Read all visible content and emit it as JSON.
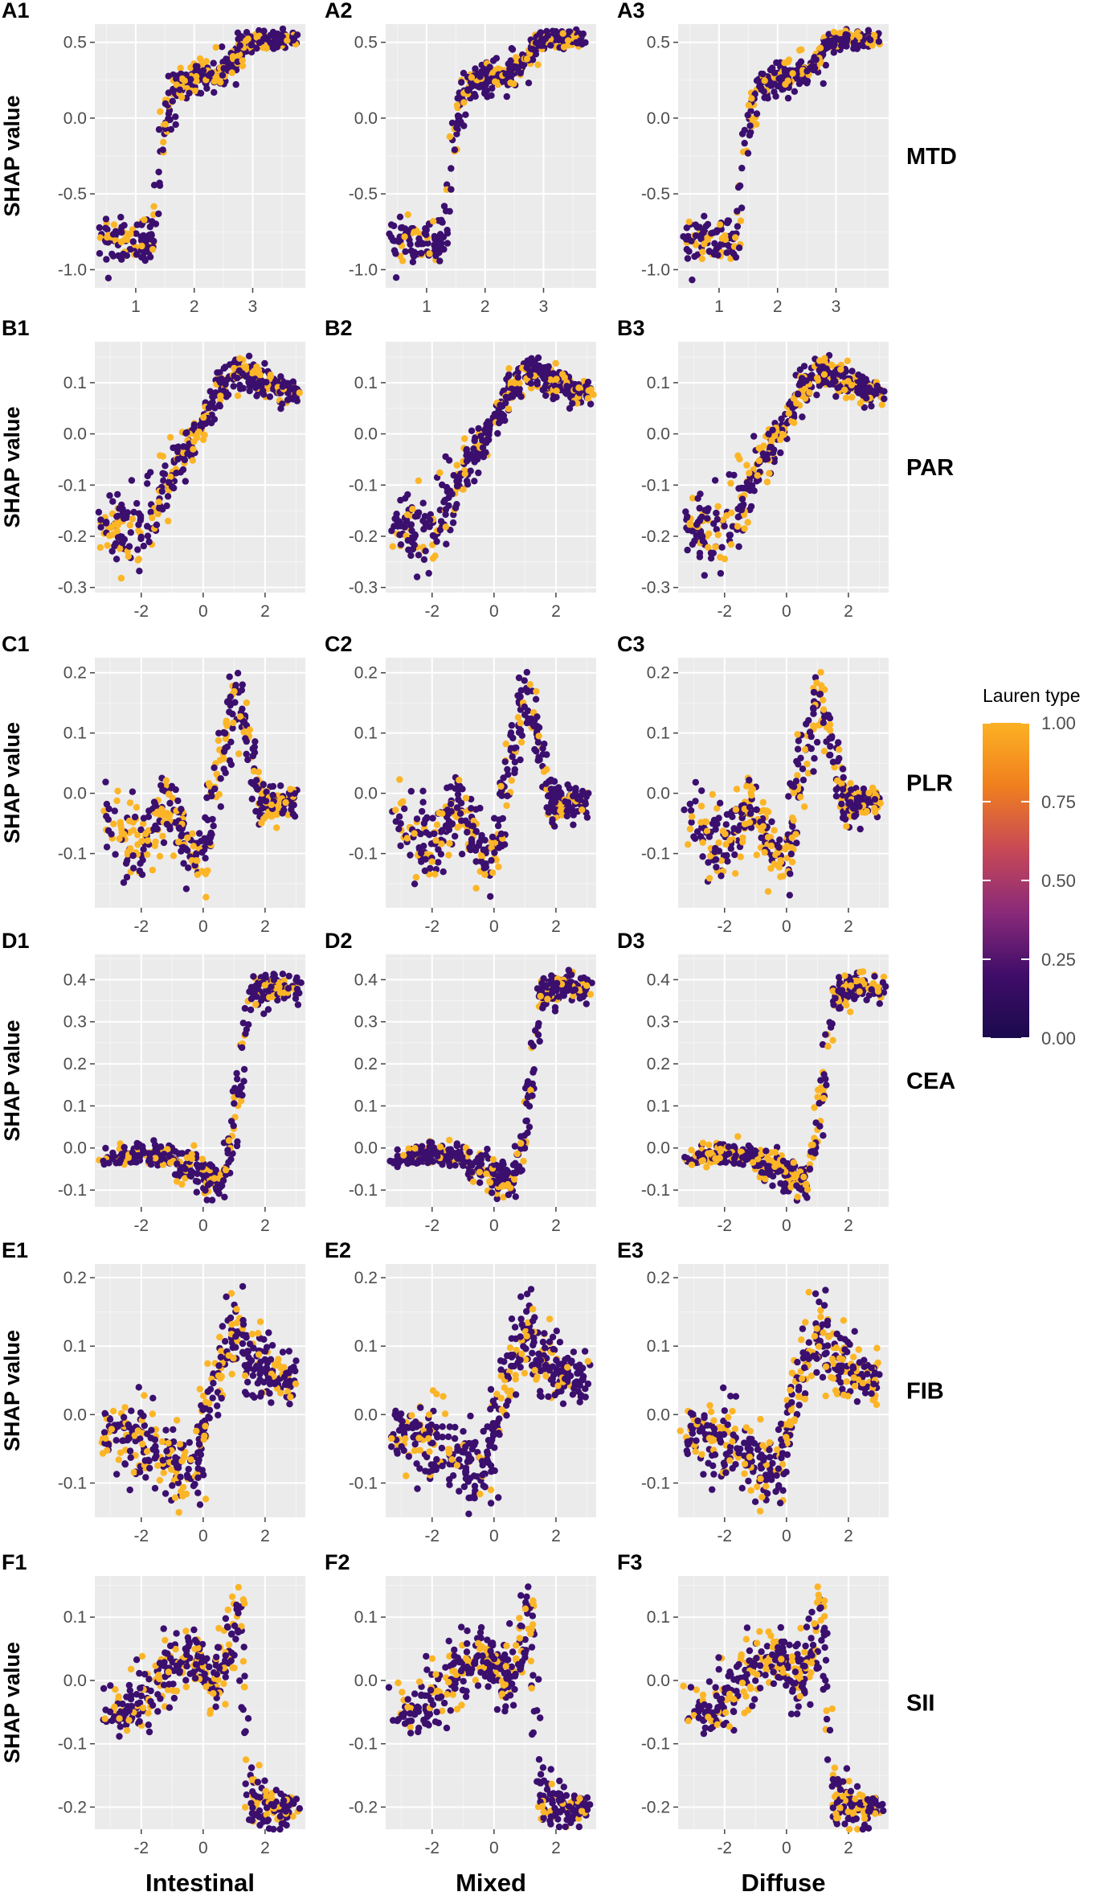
{
  "figure": {
    "y_axis_label": "SHAP value",
    "column_labels": [
      "Intestinal",
      "Mixed",
      "Diffuse"
    ],
    "legend": {
      "title": "Lauren type",
      "ticks": [
        "1.00",
        "0.75",
        "0.50",
        "0.25",
        "0.00"
      ],
      "tick_values": [
        1.0,
        0.75,
        0.5,
        0.25,
        0.0
      ],
      "colors": [
        "#fcb123",
        "#f07f1e",
        "#c84956",
        "#8a2a79",
        "#3f0d69",
        "#1b0a4d"
      ]
    }
  },
  "chart_data": [
    {
      "type": "scatter",
      "row_label": "MTD",
      "panel_labels": [
        "A1",
        "A2",
        "A3"
      ],
      "x_ticks": [
        1,
        2,
        3
      ],
      "x_tick_labels": [
        "1",
        "2",
        "3"
      ],
      "xlim": [
        0.3,
        3.9
      ],
      "y_ticks": [
        -1.0,
        -0.5,
        0.0,
        0.5
      ],
      "y_tick_labels": [
        "-1.0",
        "-0.5",
        "0.0",
        "0.5"
      ],
      "ylim": [
        -1.12,
        0.62
      ],
      "curve": [
        [
          0.4,
          -0.8
        ],
        [
          1.3,
          -0.8
        ],
        [
          1.45,
          -0.1
        ],
        [
          1.7,
          0.25
        ],
        [
          2.1,
          0.28
        ],
        [
          2.5,
          0.3
        ],
        [
          2.9,
          0.5
        ],
        [
          3.2,
          0.52
        ],
        [
          3.6,
          0.52
        ]
      ],
      "jitter": [
        0.14,
        0.1,
        0.15,
        0.07,
        0.07,
        0.08,
        0.05,
        0.04,
        0.03
      ],
      "x_range": [
        0.4,
        3.7
      ]
    },
    {
      "type": "scatter",
      "row_label": "PAR",
      "panel_labels": [
        "B1",
        "B2",
        "B3"
      ],
      "x_ticks": [
        -2,
        0,
        2
      ],
      "x_tick_labels": [
        "-2",
        "0",
        "2"
      ],
      "xlim": [
        -3.5,
        3.3
      ],
      "y_ticks": [
        -0.3,
        -0.2,
        -0.1,
        0.0,
        0.1
      ],
      "y_tick_labels": [
        "-0.3",
        "-0.2",
        "-0.1",
        "0.0",
        "0.1"
      ],
      "ylim": [
        -0.31,
        0.18
      ],
      "curve": [
        [
          -3.3,
          -0.19
        ],
        [
          -2.0,
          -0.18
        ],
        [
          -1.3,
          -0.12
        ],
        [
          -0.8,
          -0.05
        ],
        [
          0.0,
          0.02
        ],
        [
          0.6,
          0.1
        ],
        [
          1.2,
          0.12
        ],
        [
          2.0,
          0.1
        ],
        [
          3.1,
          0.08
        ]
      ],
      "jitter": [
        0.03,
        0.06,
        0.05,
        0.03,
        0.025,
        0.025,
        0.025,
        0.02,
        0.015
      ],
      "x_range": [
        -3.3,
        3.1
      ]
    },
    {
      "type": "scatter",
      "row_label": "PLR",
      "panel_labels": [
        "C1",
        "C2",
        "C3"
      ],
      "x_ticks": [
        -2,
        0,
        2
      ],
      "x_tick_labels": [
        "-2",
        "0",
        "2"
      ],
      "xlim": [
        -3.5,
        3.3
      ],
      "y_ticks": [
        -0.1,
        0.0,
        0.1,
        0.2
      ],
      "y_tick_labels": [
        "-0.1",
        "0.0",
        "0.1",
        "0.2"
      ],
      "ylim": [
        -0.19,
        0.225
      ],
      "curve": [
        [
          -3.3,
          -0.03
        ],
        [
          -2.4,
          -0.08
        ],
        [
          -1.9,
          -0.1
        ],
        [
          -1.2,
          0.0
        ],
        [
          -0.9,
          -0.05
        ],
        [
          -0.3,
          -0.1
        ],
        [
          0.0,
          -0.12
        ],
        [
          0.5,
          0.05
        ],
        [
          1.0,
          0.15
        ],
        [
          1.4,
          0.12
        ],
        [
          1.7,
          0.0
        ],
        [
          2.1,
          -0.02
        ],
        [
          3.0,
          -0.01
        ]
      ],
      "jitter": [
        0.04,
        0.05,
        0.05,
        0.04,
        0.04,
        0.04,
        0.04,
        0.04,
        0.04,
        0.04,
        0.03,
        0.02,
        0.015
      ],
      "x_range": [
        -3.3,
        3.0
      ]
    },
    {
      "type": "scatter",
      "row_label": "CEA",
      "panel_labels": [
        "D1",
        "D2",
        "D3"
      ],
      "x_ticks": [
        -2,
        0,
        2
      ],
      "x_tick_labels": [
        "-2",
        "0",
        "2"
      ],
      "xlim": [
        -3.5,
        3.3
      ],
      "y_ticks": [
        -0.1,
        0.0,
        0.1,
        0.2,
        0.3,
        0.4
      ],
      "y_tick_labels": [
        "-0.1",
        "0.0",
        "0.1",
        "0.2",
        "0.3",
        "0.4"
      ],
      "ylim": [
        -0.14,
        0.46
      ],
      "curve": [
        [
          -3.3,
          -0.03
        ],
        [
          -2.0,
          -0.01
        ],
        [
          -1.0,
          -0.03
        ],
        [
          0.0,
          -0.06
        ],
        [
          0.6,
          -0.08
        ],
        [
          0.9,
          0.0
        ],
        [
          1.2,
          0.15
        ],
        [
          1.5,
          0.35
        ],
        [
          1.8,
          0.38
        ],
        [
          2.5,
          0.38
        ],
        [
          3.1,
          0.37
        ]
      ],
      "jitter": [
        0.01,
        0.02,
        0.02,
        0.03,
        0.03,
        0.03,
        0.04,
        0.03,
        0.03,
        0.025,
        0.02
      ],
      "x_range": [
        -3.3,
        3.1
      ]
    },
    {
      "type": "scatter",
      "row_label": "FIB",
      "panel_labels": [
        "E1",
        "E2",
        "E3"
      ],
      "x_ticks": [
        -2,
        0,
        2
      ],
      "x_tick_labels": [
        "-2",
        "0",
        "2"
      ],
      "xlim": [
        -3.5,
        3.3
      ],
      "y_ticks": [
        -0.1,
        0.0,
        0.1,
        0.2
      ],
      "y_tick_labels": [
        "-0.1",
        "0.0",
        "0.1",
        "0.2"
      ],
      "ylim": [
        -0.15,
        0.22
      ],
      "curve": [
        [
          -3.3,
          -0.02
        ],
        [
          -2.0,
          -0.04
        ],
        [
          -1.0,
          -0.07
        ],
        [
          -0.2,
          -0.08
        ],
        [
          0.1,
          0.0
        ],
        [
          0.6,
          0.08
        ],
        [
          1.1,
          0.12
        ],
        [
          1.5,
          0.08
        ],
        [
          2.1,
          0.06
        ],
        [
          3.0,
          0.05
        ]
      ],
      "jitter": [
        0.03,
        0.04,
        0.04,
        0.04,
        0.04,
        0.04,
        0.045,
        0.04,
        0.03,
        0.025
      ],
      "x_range": [
        -3.3,
        3.0
      ]
    },
    {
      "type": "scatter",
      "row_label": "SII",
      "panel_labels": [
        "F1",
        "F2",
        "F3"
      ],
      "x_ticks": [
        -2,
        0,
        2
      ],
      "x_tick_labels": [
        "-2",
        "0",
        "2"
      ],
      "xlim": [
        -3.5,
        3.3
      ],
      "y_ticks": [
        -0.2,
        -0.1,
        0.0,
        0.1
      ],
      "y_tick_labels": [
        "-0.2",
        "-0.1",
        "0.0",
        "0.1"
      ],
      "ylim": [
        -0.235,
        0.165
      ],
      "curve": [
        [
          -3.3,
          -0.05
        ],
        [
          -2.0,
          -0.04
        ],
        [
          -1.2,
          0.02
        ],
        [
          -0.5,
          0.04
        ],
        [
          0.5,
          0.0
        ],
        [
          0.9,
          0.05
        ],
        [
          1.2,
          0.12
        ],
        [
          1.45,
          -0.18
        ],
        [
          2.0,
          -0.2
        ],
        [
          3.0,
          -0.2
        ]
      ],
      "jitter": [
        0.02,
        0.035,
        0.035,
        0.03,
        0.035,
        0.04,
        0.03,
        0.04,
        0.025,
        0.01
      ],
      "x_range": [
        -3.3,
        3.0
      ]
    }
  ]
}
